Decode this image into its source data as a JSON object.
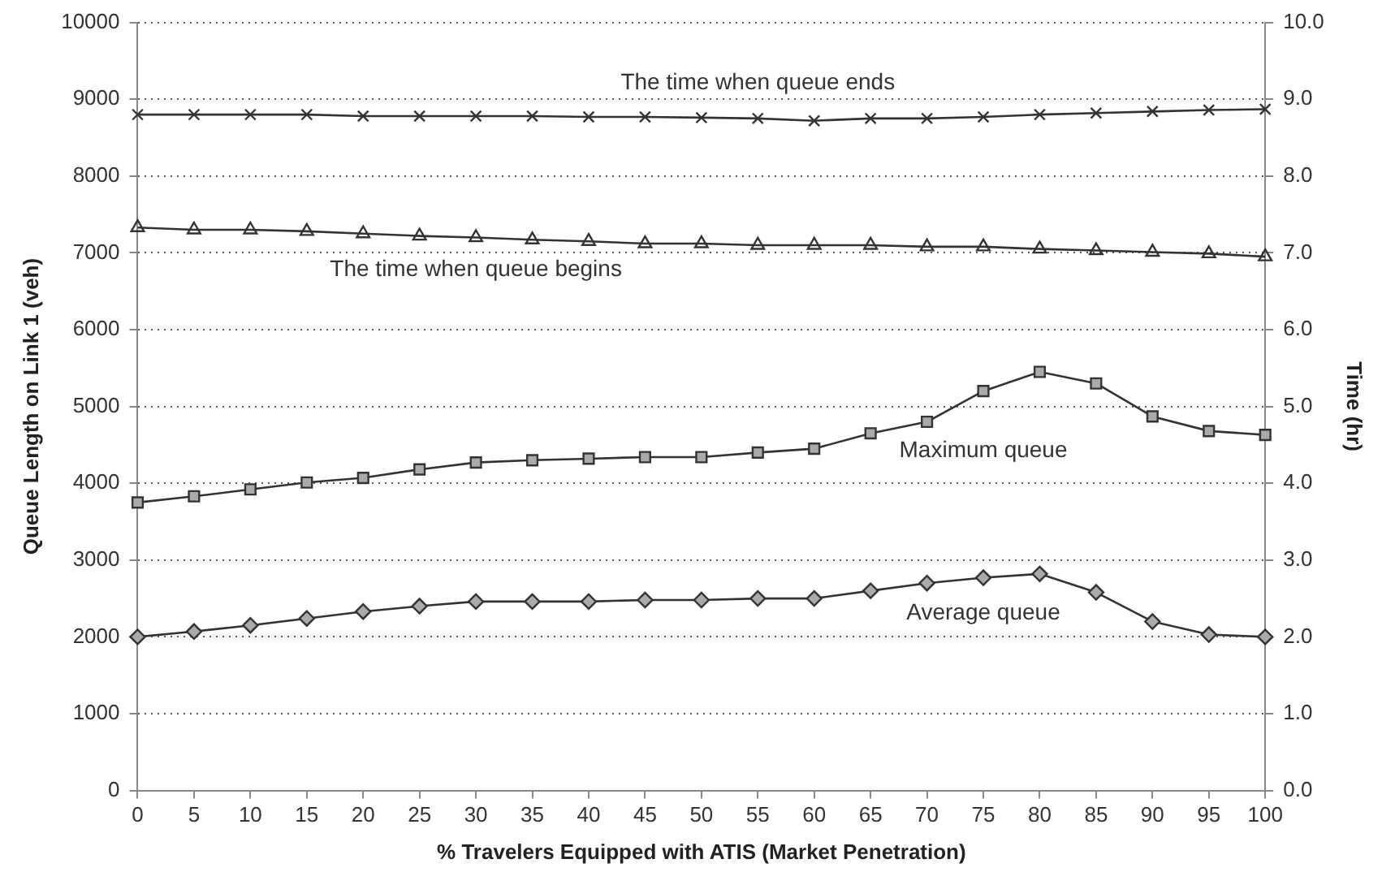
{
  "chart_data": {
    "type": "line",
    "xlabel": "% Travelers Equipped with ATIS (Market Penetration)",
    "ylabel": "Queue Length on Link 1 (veh)",
    "y2label": "Time (hr)",
    "categories": [
      "0",
      "5",
      "10",
      "15",
      "20",
      "25",
      "30",
      "35",
      "40",
      "45",
      "50",
      "55",
      "60",
      "65",
      "70",
      "75",
      "80",
      "85",
      "90",
      "95",
      "100"
    ],
    "series": [
      {
        "name": "The time when queue ends",
        "color": "#333333",
        "axis": "y2",
        "marker": "cross",
        "values": [
          8.8,
          8.8,
          8.8,
          8.8,
          8.78,
          8.78,
          8.78,
          8.78,
          8.77,
          8.77,
          8.76,
          8.75,
          8.72,
          8.75,
          8.75,
          8.77,
          8.8,
          8.82,
          8.84,
          8.86,
          8.87
        ]
      },
      {
        "name": "The time when queue begins",
        "color": "#333333",
        "axis": "y2",
        "marker": "triangle",
        "values": [
          7.33,
          7.3,
          7.3,
          7.28,
          7.25,
          7.22,
          7.2,
          7.17,
          7.15,
          7.12,
          7.12,
          7.1,
          7.1,
          7.1,
          7.08,
          7.08,
          7.05,
          7.03,
          7.01,
          6.99,
          6.95
        ]
      },
      {
        "name": "Maximum queue",
        "color": "#333333",
        "axis": "y",
        "marker": "square",
        "values": [
          3750,
          3830,
          3920,
          4010,
          4070,
          4180,
          4270,
          4300,
          4320,
          4340,
          4340,
          4400,
          4450,
          4650,
          4800,
          5200,
          5450,
          5300,
          4870,
          4680,
          4630
        ]
      },
      {
        "name": "Average queue",
        "color": "#333333",
        "axis": "y",
        "marker": "diamond",
        "values": [
          2000,
          2070,
          2150,
          2240,
          2330,
          2400,
          2460,
          2460,
          2460,
          2480,
          2480,
          2500,
          2500,
          2600,
          2700,
          2770,
          2820,
          2580,
          2200,
          2030,
          2000
        ]
      }
    ],
    "ylim": [
      0,
      10000
    ],
    "yticks": [
      0,
      1000,
      2000,
      3000,
      4000,
      5000,
      6000,
      7000,
      8000,
      9000,
      10000
    ],
    "y2lim": [
      0,
      10
    ],
    "y2ticks": [
      {
        "value": 0,
        "label": "0.0"
      },
      {
        "value": 1,
        "label": "1.0"
      },
      {
        "value": 2,
        "label": "2.0"
      },
      {
        "value": 3,
        "label": "3.0"
      },
      {
        "value": 4,
        "label": "4.0"
      },
      {
        "value": 5,
        "label": "5.0"
      },
      {
        "value": 6,
        "label": "6.0"
      },
      {
        "value": 7,
        "label": "7.0"
      },
      {
        "value": 8,
        "label": "8.0"
      },
      {
        "value": 9,
        "label": "9.0"
      },
      {
        "value": 10,
        "label": "10.0"
      }
    ],
    "grid": "y",
    "legend": false
  }
}
